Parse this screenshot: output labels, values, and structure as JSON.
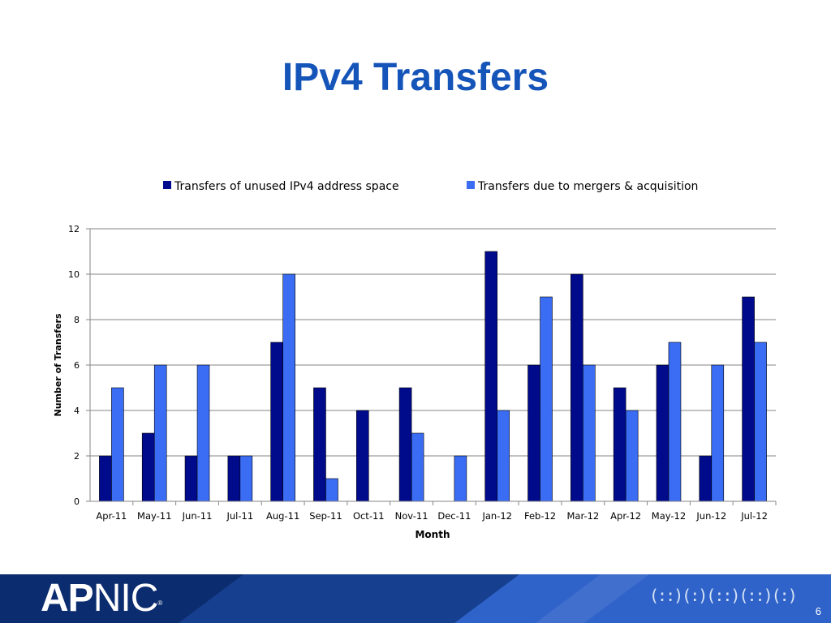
{
  "slide": {
    "title": "IPv4 Transfers",
    "page_number": "6"
  },
  "footer": {
    "logo_bold": "AP",
    "logo_regular": "NIC",
    "logo_mark": "®",
    "tagline": "(::)(:)(::)(::)(:)"
  },
  "colors": {
    "series1": "#000b8c",
    "series2": "#3a6cf4",
    "title": "#1554b8",
    "footer_dark": "#0b2c6e",
    "footer_mid": "#173f8f",
    "footer_light": "#3063c9",
    "grid": "#868686"
  },
  "chart_data": {
    "type": "bar",
    "categories": [
      "Apr-11",
      "May-11",
      "Jun-11",
      "Jul-11",
      "Aug-11",
      "Sep-11",
      "Oct-11",
      "Nov-11",
      "Dec-11",
      "Jan-12",
      "Feb-12",
      "Mar-12",
      "Apr-12",
      "May-12",
      "Jun-12",
      "Jul-12"
    ],
    "series": [
      {
        "name": "Transfers of unused IPv4 address space",
        "values": [
          2,
          3,
          2,
          2,
          7,
          5,
          4,
          5,
          0,
          11,
          6,
          10,
          5,
          6,
          2,
          9
        ]
      },
      {
        "name": "Transfers due to mergers & acquisition",
        "values": [
          5,
          6,
          6,
          2,
          10,
          1,
          0,
          3,
          2,
          4,
          9,
          6,
          4,
          7,
          6,
          7
        ]
      }
    ],
    "xlabel": "Month",
    "ylabel": "Number of Transfers",
    "ylim": [
      0,
      12
    ],
    "yticks": [
      0,
      2,
      4,
      6,
      8,
      10,
      12
    ],
    "grid": true,
    "legend_position": "top"
  }
}
